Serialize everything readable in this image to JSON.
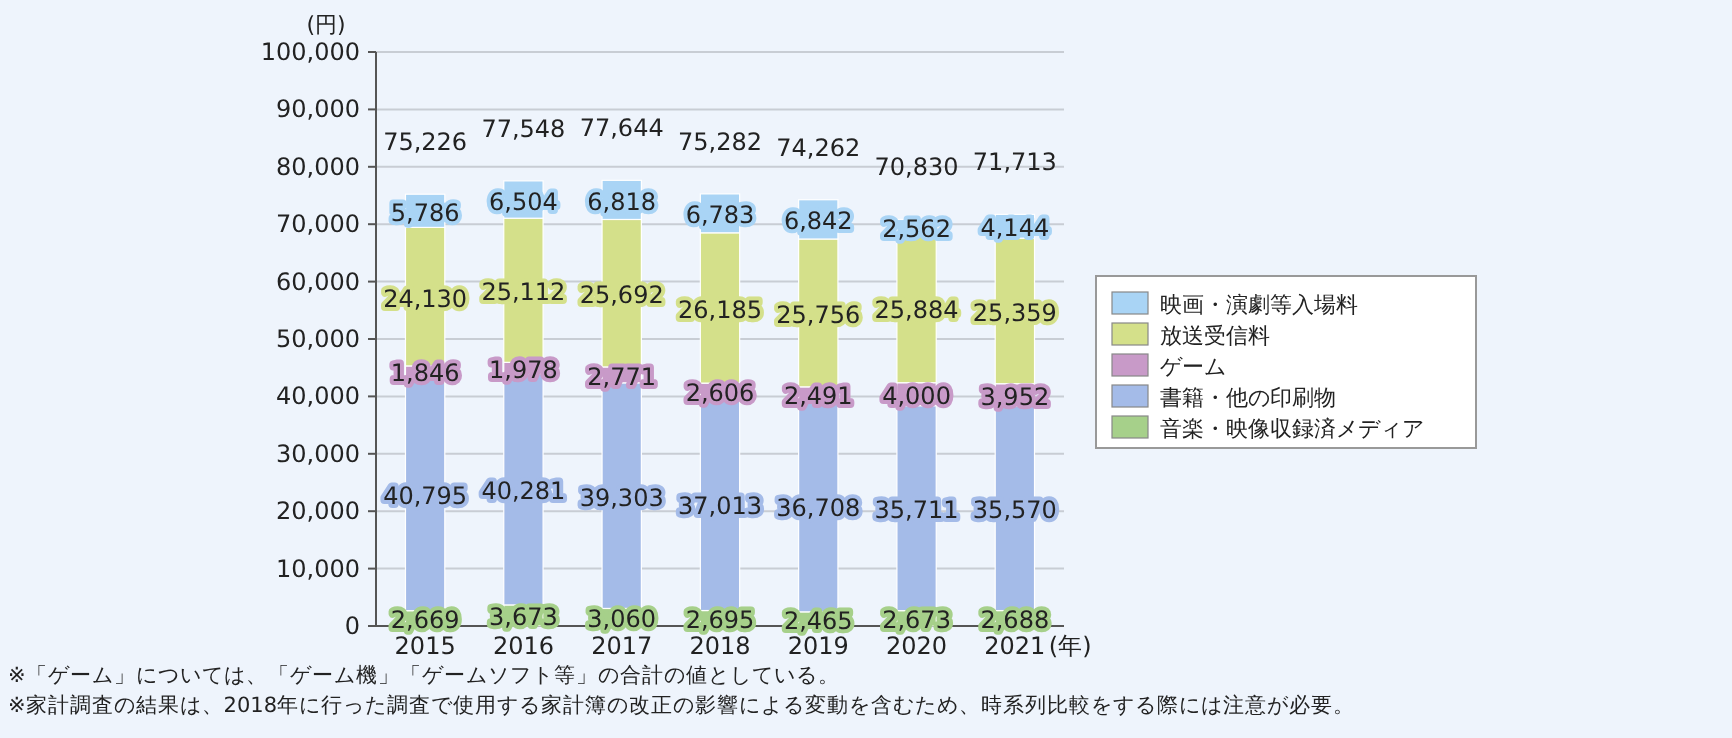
{
  "chart_data": {
    "type": "bar",
    "stacked": true,
    "ylabel": "(円)",
    "xlabel": "(年)",
    "categories": [
      "2015",
      "2016",
      "2017",
      "2018",
      "2019",
      "2020",
      "2021"
    ],
    "series": [
      {
        "name": "音楽・映像収録済メディア",
        "color": "#a6d08a",
        "values": [
          2669,
          3673,
          3060,
          2695,
          2465,
          2673,
          2688
        ],
        "value_labels": [
          "2,669",
          "3,673",
          "3,060",
          "2,695",
          "2,465",
          "2,673",
          "2,688"
        ]
      },
      {
        "name": "書籍・他の印刷物",
        "color": "#a4bbe8",
        "values": [
          40795,
          40281,
          39303,
          37013,
          36708,
          35711,
          35570
        ],
        "value_labels": [
          "40,795",
          "40,281",
          "39,303",
          "37,013",
          "36,708",
          "35,711",
          "35,570"
        ]
      },
      {
        "name": "ゲーム",
        "color": "#c89ac8",
        "values": [
          1846,
          1978,
          2771,
          2606,
          2491,
          4000,
          3952
        ],
        "value_labels": [
          "1,846",
          "1,978",
          "2,771",
          "2,606",
          "2,491",
          "4,000",
          "3,952"
        ]
      },
      {
        "name": "放送受信料",
        "color": "#d4e08a",
        "values": [
          24130,
          25112,
          25692,
          26185,
          25756,
          25884,
          25359
        ],
        "value_labels": [
          "24,130",
          "25,112",
          "25,692",
          "26,185",
          "25,756",
          "25,884",
          "25,359"
        ]
      },
      {
        "name": "映画・演劇等入場料",
        "color": "#a9d4f5",
        "values": [
          5786,
          6504,
          6818,
          6783,
          6842,
          2562,
          4144
        ],
        "value_labels": [
          "5,786",
          "6,504",
          "6,818",
          "6,783",
          "6,842",
          "2,562",
          "4,144"
        ]
      }
    ],
    "totals": [
      "75,226",
      "77,548",
      "77,644",
      "75,282",
      "74,262",
      "70,830",
      "71,713"
    ],
    "ylim": [
      0,
      100000
    ],
    "yticks": [
      {
        "value": 0,
        "label": "0"
      },
      {
        "value": 10000,
        "label": "10,000"
      },
      {
        "value": 20000,
        "label": "20,000"
      },
      {
        "value": 30000,
        "label": "30,000"
      },
      {
        "value": 40000,
        "label": "40,000"
      },
      {
        "value": 50000,
        "label": "50,000"
      },
      {
        "value": 60000,
        "label": "60,000"
      },
      {
        "value": 70000,
        "label": "70,000"
      },
      {
        "value": 80000,
        "label": "80,000"
      },
      {
        "value": 90000,
        "label": "90,000"
      },
      {
        "value": 100000,
        "label": "100,000"
      }
    ],
    "grid": "y",
    "legend": "right",
    "annotations": [
      "※「ゲーム」については、「ゲーム機」「ゲームソフト等」の合計の値としている。",
      "※家計調査の結果は、2018年に行った調査で使用する家計簿の改正の影響による変動を含むため、時系列比較をする際には注意が必要。"
    ]
  }
}
